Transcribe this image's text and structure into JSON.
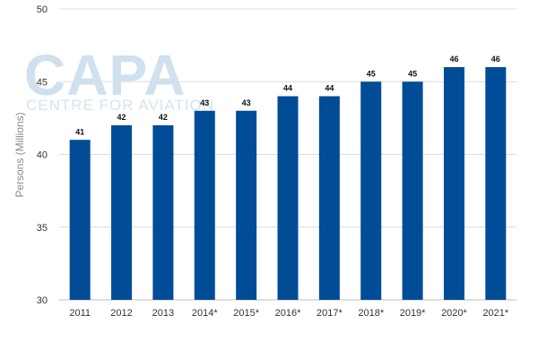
{
  "watermark": {
    "logo": "CAPA",
    "tagline": "CENTRE FOR AVIATION"
  },
  "chart_data": {
    "type": "bar",
    "title": "",
    "xlabel": "",
    "ylabel": "Persons (Millions)",
    "ylim": [
      30,
      50
    ],
    "yticks": [
      30,
      35,
      40,
      45,
      50
    ],
    "grid": true,
    "legend": "none",
    "bar_color": "#004c97",
    "categories": [
      "2011",
      "2012",
      "2013",
      "2014*",
      "2015*",
      "2016*",
      "2017*",
      "2018*",
      "2019*",
      "2020*",
      "2021*"
    ],
    "values": [
      41,
      42,
      42,
      43,
      43,
      44,
      44,
      45,
      45,
      46,
      46
    ]
  }
}
